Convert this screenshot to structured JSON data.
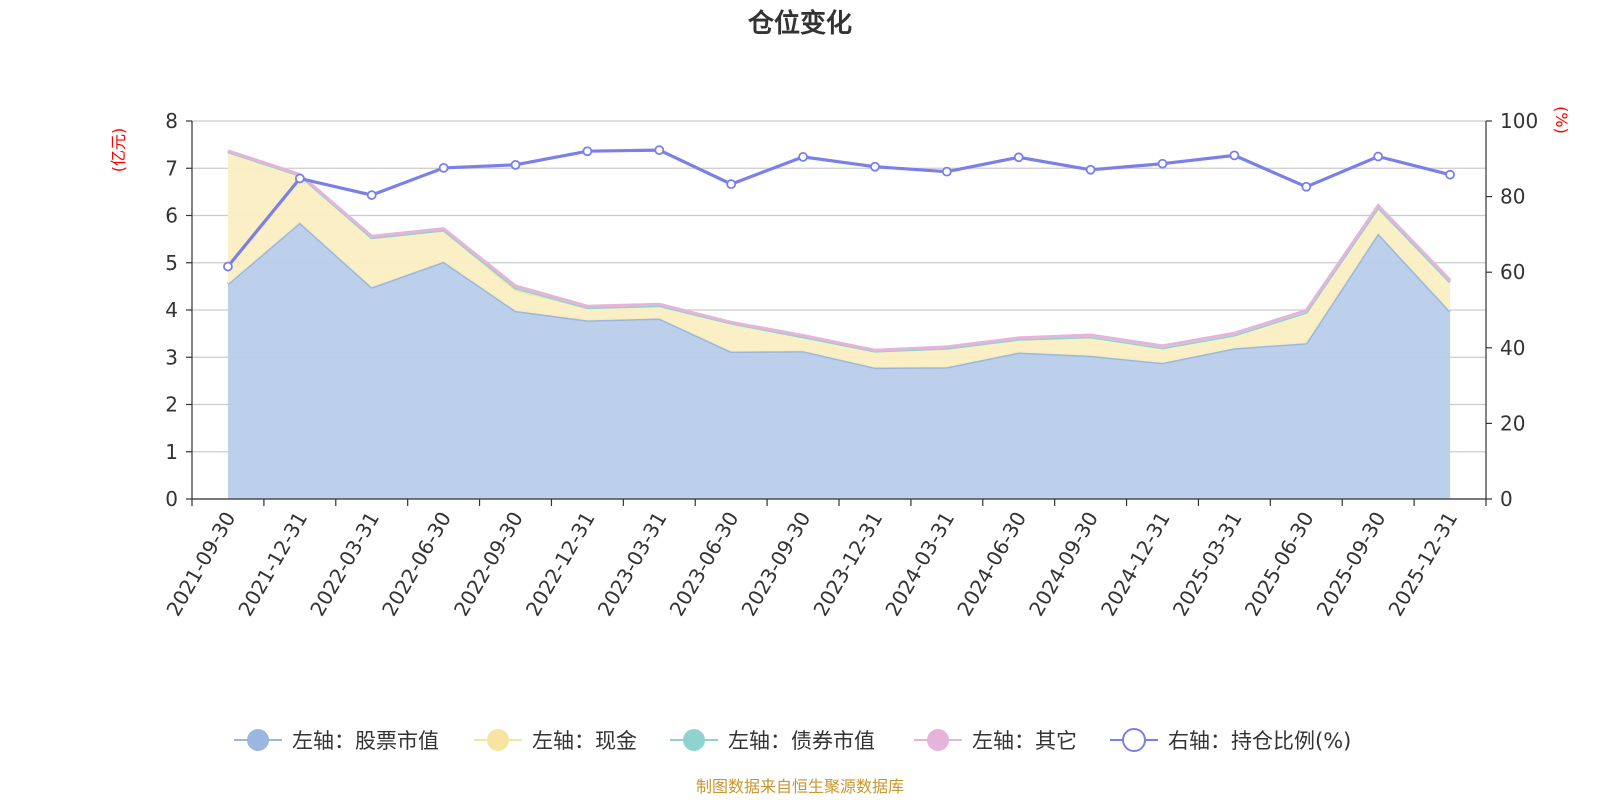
{
  "chart_data": {
    "type": "area",
    "title": "仓位变化",
    "left_unit": "(亿元)",
    "right_unit": "(%)",
    "categories": [
      "2021-09-30",
      "2021-12-31",
      "2022-03-31",
      "2022-06-30",
      "2022-09-30",
      "2022-12-31",
      "2023-03-31",
      "2023-06-30",
      "2023-09-30",
      "2023-12-31",
      "2024-03-31",
      "2024-06-30",
      "2024-09-30",
      "2024-12-31",
      "2025-03-31",
      "2025-06-30",
      "2025-09-30",
      "2025-12-31"
    ],
    "left_axis": {
      "min": 0,
      "max": 8,
      "ticks": [
        "0",
        "1",
        "2",
        "3",
        "4",
        "5",
        "6",
        "7",
        "8"
      ]
    },
    "right_axis": {
      "min": 0,
      "max": 100,
      "ticks": [
        "0",
        "20",
        "40",
        "60",
        "80",
        "100"
      ]
    },
    "series": [
      {
        "name": "左轴：股票市值",
        "axis": "left",
        "kind": "area",
        "color": "#9bb7e0",
        "fill": "#b8cdea",
        "values": [
          4.55,
          5.85,
          4.48,
          5.02,
          3.98,
          3.78,
          3.82,
          3.12,
          3.13,
          2.78,
          2.79,
          3.1,
          3.03,
          2.88,
          3.19,
          3.3,
          5.62,
          3.97
        ]
      },
      {
        "name": "左轴：现金",
        "axis": "left",
        "kind": "area",
        "color": "#f7e4a0",
        "fill": "#fbefc2",
        "values": [
          2.8,
          1.0,
          1.05,
          0.67,
          0.45,
          0.27,
          0.27,
          0.6,
          0.3,
          0.35,
          0.4,
          0.28,
          0.4,
          0.32,
          0.28,
          0.65,
          0.55,
          0.62
        ]
      },
      {
        "name": "左轴：债券市值",
        "axis": "left",
        "kind": "area",
        "color": "#8ed3cf",
        "fill": "#a9dfdc",
        "values": [
          0,
          0,
          0,
          0,
          0.04,
          0,
          0,
          0,
          0,
          0,
          0,
          0,
          0,
          0,
          0,
          0,
          0,
          0
        ]
      },
      {
        "name": "左轴：其它",
        "axis": "left",
        "kind": "area",
        "color": "#e6b3da",
        "fill": "#f1d4ea",
        "values": [
          0.02,
          0.02,
          0.03,
          0.03,
          0.04,
          0.03,
          0.03,
          0.02,
          0.03,
          0.02,
          0.03,
          0.03,
          0.04,
          0.04,
          0.04,
          0.04,
          0.04,
          0.04
        ]
      },
      {
        "name": "右轴：持仓比例(%)",
        "axis": "right",
        "kind": "line",
        "color": "#7b7fea",
        "values": [
          61.5,
          84.8,
          80.4,
          87.6,
          88.4,
          92.0,
          92.3,
          83.3,
          90.5,
          87.9,
          86.6,
          90.4,
          87.1,
          88.7,
          90.9,
          82.6,
          90.6,
          85.8
        ]
      }
    ],
    "legend_position": "bottom-center",
    "grid": true
  },
  "footer": {
    "source": "制图数据来自恒生聚源数据库"
  }
}
